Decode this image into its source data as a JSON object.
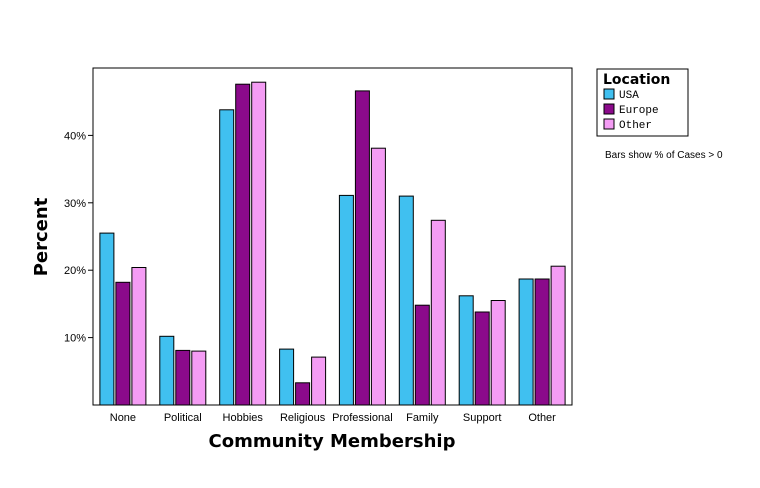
{
  "chart_data": {
    "type": "bar",
    "title": "",
    "xlabel": "Community Membership",
    "ylabel": "Percent",
    "categories": [
      "None",
      "Political",
      "Hobbies",
      "Religious",
      "Professional",
      "Family",
      "Support",
      "Other"
    ],
    "series": [
      {
        "name": "USA",
        "color": "#40c0f0",
        "values": [
          25.5,
          10.2,
          43.8,
          8.3,
          31.1,
          31.0,
          16.2,
          18.7
        ]
      },
      {
        "name": "Europe",
        "color": "#8b0a8b",
        "values": [
          18.2,
          8.1,
          47.6,
          3.3,
          46.6,
          14.8,
          13.8,
          18.7
        ]
      },
      {
        "name": "Other",
        "color": "#f49cf4",
        "values": [
          20.4,
          8.0,
          47.9,
          7.1,
          38.1,
          27.4,
          15.5,
          20.6
        ]
      }
    ],
    "yticks": [
      10,
      20,
      30,
      40
    ],
    "ytick_labels": [
      "10%",
      "20%",
      "30%",
      "40%"
    ],
    "ylim": [
      0,
      50
    ],
    "grid": false,
    "legend": {
      "title": "Location",
      "position": "right"
    },
    "note": "Bars show % of Cases > 0"
  }
}
